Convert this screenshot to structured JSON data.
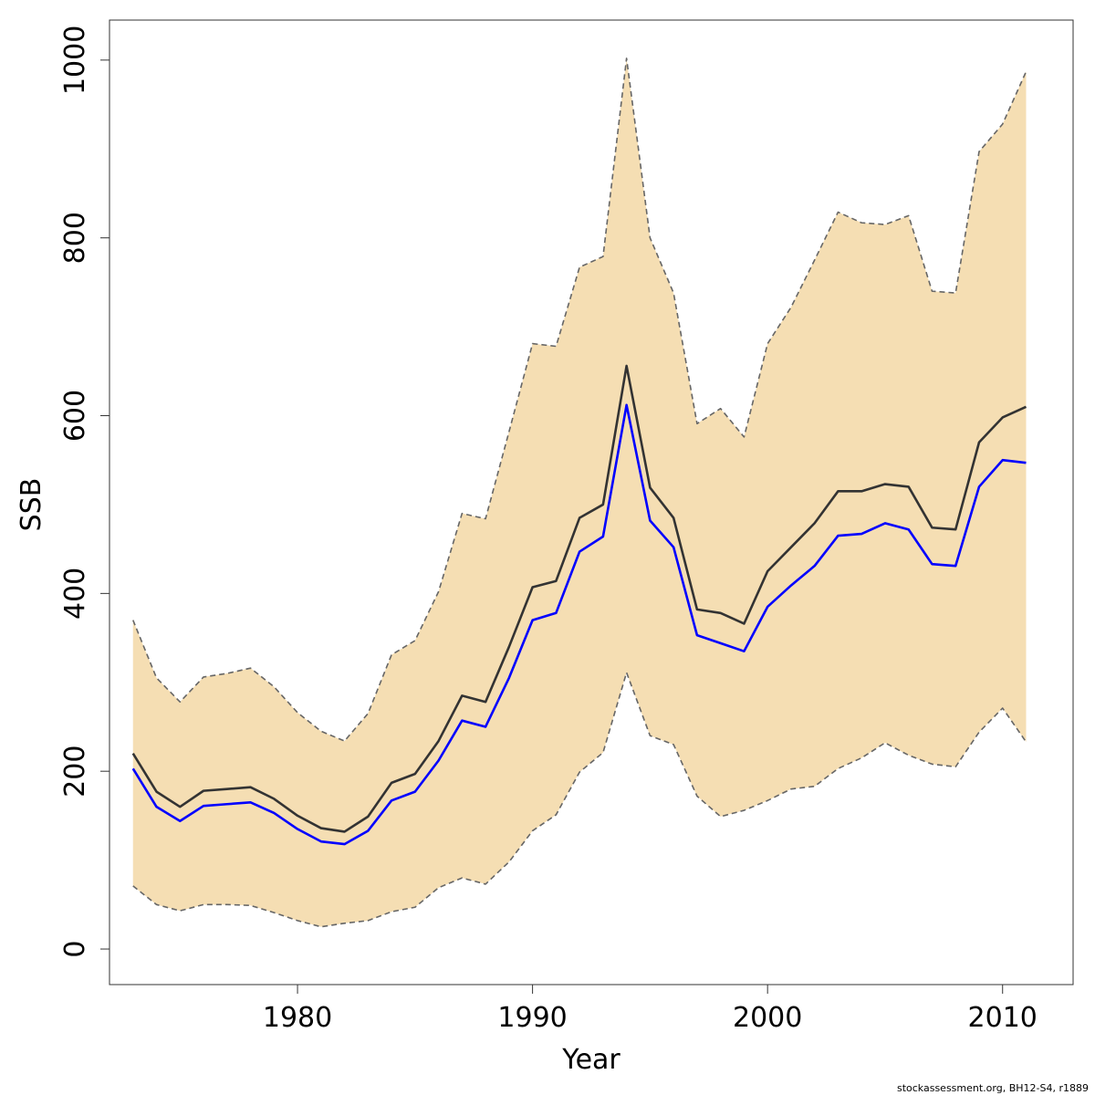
{
  "chart_data": {
    "type": "line",
    "title": "",
    "xlabel": "Year",
    "ylabel": "SSB",
    "xlim": [
      1972,
      2013
    ],
    "ylim": [
      -40,
      1045
    ],
    "x_ticks": [
      1980,
      1990,
      2000,
      2010
    ],
    "y_ticks": [
      0,
      200,
      400,
      600,
      800,
      1000
    ],
    "grid": false,
    "legend": "none",
    "x": [
      1973,
      1974,
      1975,
      1976,
      1977,
      1978,
      1979,
      1980,
      1981,
      1982,
      1983,
      1984,
      1985,
      1986,
      1987,
      1988,
      1989,
      1990,
      1991,
      1992,
      1993,
      1994,
      1995,
      1996,
      1997,
      1998,
      1999,
      2000,
      2001,
      2002,
      2003,
      2004,
      2005,
      2006,
      2007,
      2008,
      2009,
      2010,
      2011
    ],
    "series": [
      {
        "role": "band_upper",
        "color": "#666666",
        "values": [
          370,
          305,
          278,
          306,
          310,
          316,
          295,
          266,
          245,
          234,
          265,
          331,
          347,
          402,
          490,
          484,
          582,
          681,
          678,
          767,
          779,
          1002,
          800,
          738,
          591,
          608,
          576,
          681,
          722,
          775,
          829,
          817,
          815,
          825,
          740,
          738,
          897,
          928,
          987
        ]
      },
      {
        "role": "band_lower",
        "color": "#666666",
        "values": [
          71,
          50,
          43,
          50,
          50,
          49,
          41,
          32,
          25,
          29,
          32,
          42,
          47,
          69,
          80,
          73,
          98,
          133,
          151,
          199,
          221,
          311,
          240,
          230,
          172,
          149,
          156,
          167,
          180,
          183,
          203,
          215,
          232,
          218,
          208,
          205,
          244,
          271,
          233
        ]
      },
      {
        "role": "black_line",
        "color": "#333333",
        "values": [
          220,
          177,
          160,
          178,
          180,
          182,
          169,
          150,
          136,
          132,
          149,
          187,
          197,
          234,
          285,
          278,
          340,
          407,
          414,
          485,
          500,
          656,
          519,
          485,
          382,
          378,
          366,
          425,
          452,
          479,
          515,
          515,
          523,
          520,
          474,
          472,
          570,
          598,
          610
        ]
      },
      {
        "role": "blue_line",
        "color": "#0000ff",
        "values": [
          203,
          160,
          144,
          161,
          163,
          165,
          153,
          135,
          121,
          118,
          133,
          167,
          177,
          212,
          257,
          250,
          305,
          370,
          378,
          447,
          464,
          612,
          482,
          452,
          353,
          344,
          335,
          385,
          409,
          431,
          465,
          467,
          479,
          472,
          433,
          431,
          520,
          550,
          547
        ]
      }
    ],
    "band_fill": "#f5deb3",
    "credit": "stockassessment.org, BH12-S4, r1889"
  }
}
